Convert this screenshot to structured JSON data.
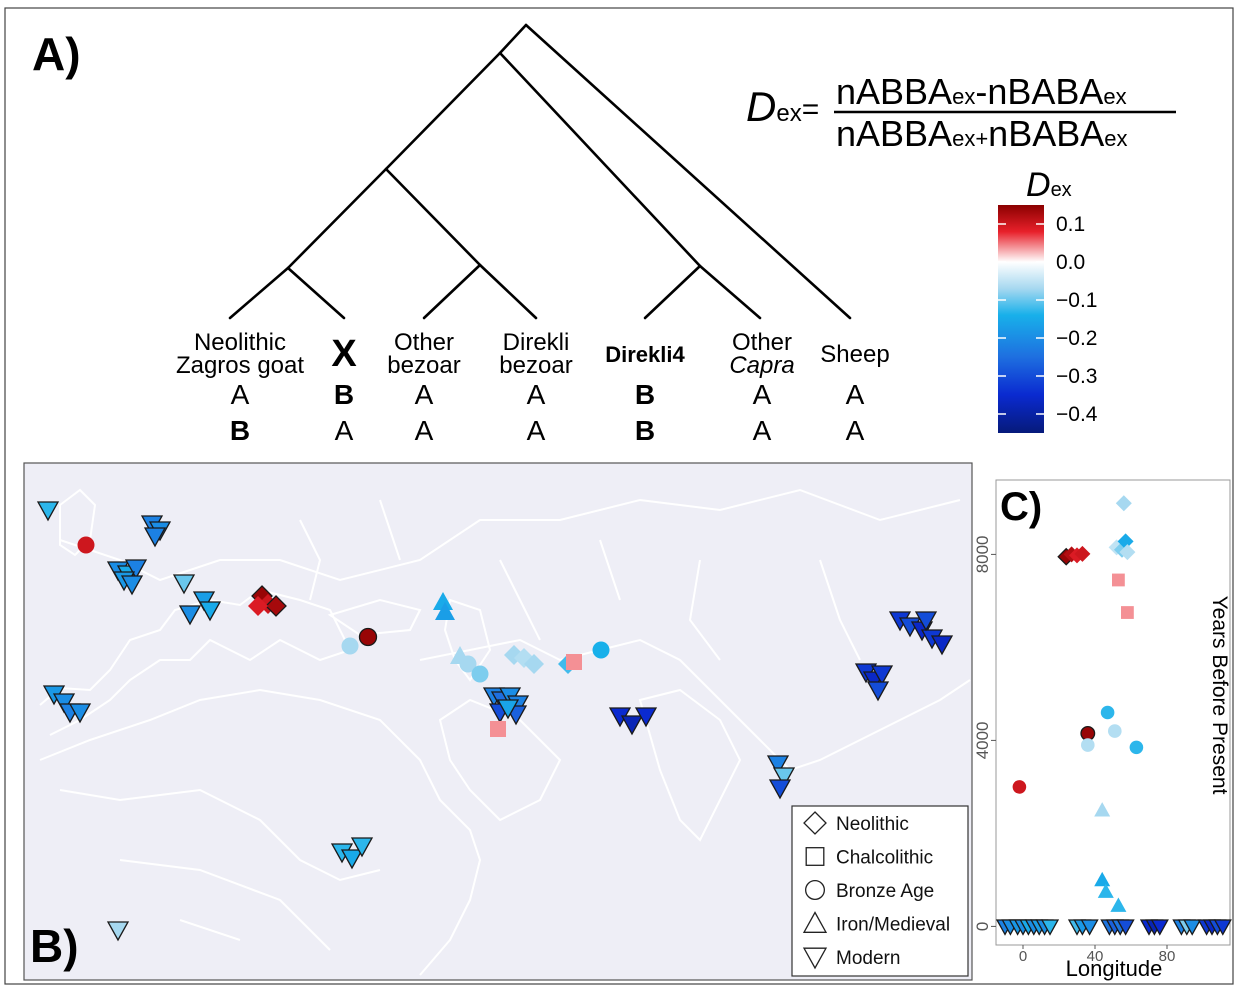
{
  "panel_a": {
    "label": "A)",
    "formula": {
      "lhs_symbol": "D",
      "lhs_sub": "ex",
      "equals": "=",
      "numerator": [
        {
          "t": "nABBA",
          "sub": false
        },
        {
          "t": "ex",
          "sub": true
        },
        {
          "t": "-nBABA",
          "sub": false
        },
        {
          "t": "ex",
          "sub": true
        }
      ],
      "denominator": [
        {
          "t": "nABBA",
          "sub": false
        },
        {
          "t": "ex+",
          "sub": true
        },
        {
          "t": "nBABA",
          "sub": false
        },
        {
          "t": "ex",
          "sub": true
        }
      ]
    },
    "taxa": [
      {
        "lines": [
          "Neolithic",
          "Zagros goat"
        ],
        "bold": false,
        "italic_line": -1,
        "row1": "A",
        "row1_bold": false,
        "row2": "B",
        "row2_bold": true
      },
      {
        "lines": [
          "X"
        ],
        "bold": true,
        "italic_line": -1,
        "row1": "B",
        "row1_bold": true,
        "row2": "A",
        "row2_bold": false
      },
      {
        "lines": [
          "Other",
          "bezoar"
        ],
        "bold": false,
        "italic_line": -1,
        "row1": "A",
        "row1_bold": false,
        "row2": "A",
        "row2_bold": false
      },
      {
        "lines": [
          "Direkli",
          "bezoar"
        ],
        "bold": false,
        "italic_line": -1,
        "row1": "A",
        "row1_bold": false,
        "row2": "A",
        "row2_bold": false
      },
      {
        "lines": [
          "Direkli4"
        ],
        "bold": true,
        "italic_line": -1,
        "row1": "B",
        "row1_bold": true,
        "row2": "B",
        "row2_bold": true
      },
      {
        "lines": [
          "Other",
          "Capra"
        ],
        "bold": false,
        "italic_line": 1,
        "row1": "A",
        "row1_bold": false,
        "row2": "A",
        "row2_bold": false
      },
      {
        "lines": [
          "Sheep"
        ],
        "bold": false,
        "italic_line": -1,
        "row1": "A",
        "row1_bold": false,
        "row2": "A",
        "row2_bold": false
      }
    ],
    "colorbar": {
      "title_symbol": "D",
      "title_sub": "ex",
      "min": -0.45,
      "max": 0.15,
      "stops": [
        {
          "v": 0.15,
          "c": "#8b0000"
        },
        {
          "v": 0.08,
          "c": "#e8202a"
        },
        {
          "v": 0.0,
          "c": "#ffffff"
        },
        {
          "v": -0.07,
          "c": "#a6d8f0"
        },
        {
          "v": -0.14,
          "c": "#18b0ea"
        },
        {
          "v": -0.25,
          "c": "#1e6fe0"
        },
        {
          "v": -0.35,
          "c": "#0a2ad0"
        },
        {
          "v": -0.45,
          "c": "#061a7a"
        }
      ],
      "ticks": [
        {
          "v": 0.1,
          "label": "0.1"
        },
        {
          "v": 0.0,
          "label": "0.0"
        },
        {
          "v": -0.1,
          "label": "−0.1"
        },
        {
          "v": -0.2,
          "label": "−0.2"
        },
        {
          "v": -0.3,
          "label": "−0.3"
        },
        {
          "v": -0.4,
          "label": "−0.4"
        }
      ]
    }
  },
  "panel_b": {
    "label": "B)",
    "legend": [
      {
        "shape": "diamond",
        "label": "Neolithic"
      },
      {
        "shape": "square",
        "label": "Chalcolithic"
      },
      {
        "shape": "circle",
        "label": "Bronze Age"
      },
      {
        "shape": "triangle-up",
        "label": "Iron/Medieval"
      },
      {
        "shape": "triangle-down",
        "label": "Modern"
      }
    ],
    "colors": {
      "map_bg": "#eeeef6",
      "land_line": "#ffffff",
      "water": "#ffffff"
    }
  },
  "panel_c": {
    "label": "C)",
    "chart_data": {
      "type": "scatter",
      "xlabel": "Longitude",
      "ylabel": "Years Before Present",
      "xlim": [
        -15,
        115
      ],
      "ylim": [
        -400,
        9600
      ],
      "xticks": [
        0,
        40,
        80
      ],
      "yticks": [
        0,
        4000,
        8000
      ],
      "grid": false,
      "points": [
        {
          "x": 24,
          "y": 7950,
          "shape": "diamond",
          "dex": 0.14
        },
        {
          "x": 27,
          "y": 8000,
          "shape": "diamond",
          "dex": 0.12
        },
        {
          "x": 30,
          "y": 7980,
          "shape": "diamond",
          "dex": 0.09
        },
        {
          "x": 33,
          "y": 8010,
          "shape": "diamond",
          "dex": 0.1
        },
        {
          "x": 52,
          "y": 8150,
          "shape": "diamond",
          "dex": -0.05
        },
        {
          "x": 55,
          "y": 8100,
          "shape": "diamond",
          "dex": -0.09
        },
        {
          "x": 57,
          "y": 8280,
          "shape": "diamond",
          "dex": -0.15
        },
        {
          "x": 58,
          "y": 8050,
          "shape": "diamond",
          "dex": -0.06
        },
        {
          "x": 56,
          "y": 9100,
          "shape": "diamond",
          "dex": -0.07
        },
        {
          "x": 53,
          "y": 7450,
          "shape": "square",
          "dex": 0.04
        },
        {
          "x": 58,
          "y": 6750,
          "shape": "square",
          "dex": 0.04
        },
        {
          "x": 36,
          "y": 4150,
          "shape": "circle",
          "dex": 0.14
        },
        {
          "x": -2,
          "y": 3000,
          "shape": "circle",
          "dex": 0.1
        },
        {
          "x": 36,
          "y": 3900,
          "shape": "circle",
          "dex": -0.06
        },
        {
          "x": 47,
          "y": 4600,
          "shape": "circle",
          "dex": -0.13
        },
        {
          "x": 51,
          "y": 4200,
          "shape": "circle",
          "dex": -0.06
        },
        {
          "x": 63,
          "y": 3850,
          "shape": "circle",
          "dex": -0.13
        },
        {
          "x": 44,
          "y": 2500,
          "shape": "triangle-up",
          "dex": -0.07
        },
        {
          "x": 44,
          "y": 1000,
          "shape": "triangle-up",
          "dex": -0.15
        },
        {
          "x": 46,
          "y": 750,
          "shape": "triangle-up",
          "dex": -0.13
        },
        {
          "x": 53,
          "y": 450,
          "shape": "triangle-up",
          "dex": -0.13
        },
        {
          "x": -10,
          "y": 0,
          "shape": "triangle-down",
          "dex": -0.22
        },
        {
          "x": -7,
          "y": 0,
          "shape": "triangle-down",
          "dex": -0.2
        },
        {
          "x": -3,
          "y": 0,
          "shape": "triangle-down",
          "dex": -0.18
        },
        {
          "x": 0,
          "y": 0,
          "shape": "triangle-down",
          "dex": -0.2
        },
        {
          "x": 3,
          "y": 0,
          "shape": "triangle-down",
          "dex": -0.15
        },
        {
          "x": 6,
          "y": 0,
          "shape": "triangle-down",
          "dex": -0.2
        },
        {
          "x": 9,
          "y": 0,
          "shape": "triangle-down",
          "dex": -0.17
        },
        {
          "x": 12,
          "y": 0,
          "shape": "triangle-down",
          "dex": -0.2
        },
        {
          "x": 15,
          "y": 0,
          "shape": "triangle-down",
          "dex": -0.13
        },
        {
          "x": 30,
          "y": 0,
          "shape": "triangle-down",
          "dex": -0.12
        },
        {
          "x": 33,
          "y": 0,
          "shape": "triangle-down",
          "dex": -0.18
        },
        {
          "x": 37,
          "y": 0,
          "shape": "triangle-down",
          "dex": -0.2
        },
        {
          "x": 48,
          "y": 0,
          "shape": "triangle-down",
          "dex": -0.24
        },
        {
          "x": 51,
          "y": 0,
          "shape": "triangle-down",
          "dex": -0.27
        },
        {
          "x": 54,
          "y": 0,
          "shape": "triangle-down",
          "dex": -0.24
        },
        {
          "x": 57,
          "y": 0,
          "shape": "triangle-down",
          "dex": -0.3
        },
        {
          "x": 70,
          "y": 0,
          "shape": "triangle-down",
          "dex": -0.35
        },
        {
          "x": 73,
          "y": 0,
          "shape": "triangle-down",
          "dex": -0.38
        },
        {
          "x": 76,
          "y": 0,
          "shape": "triangle-down",
          "dex": -0.35
        },
        {
          "x": 88,
          "y": 0,
          "shape": "triangle-down",
          "dex": -0.22
        },
        {
          "x": 91,
          "y": 0,
          "shape": "triangle-down",
          "dex": -0.09
        },
        {
          "x": 94,
          "y": 0,
          "shape": "triangle-down",
          "dex": -0.2
        },
        {
          "x": 102,
          "y": 0,
          "shape": "triangle-down",
          "dex": -0.33
        },
        {
          "x": 105,
          "y": 0,
          "shape": "triangle-down",
          "dex": -0.36
        },
        {
          "x": 108,
          "y": 0,
          "shape": "triangle-down",
          "dex": -0.3
        },
        {
          "x": 111,
          "y": 0,
          "shape": "triangle-down",
          "dex": -0.33
        }
      ]
    }
  }
}
